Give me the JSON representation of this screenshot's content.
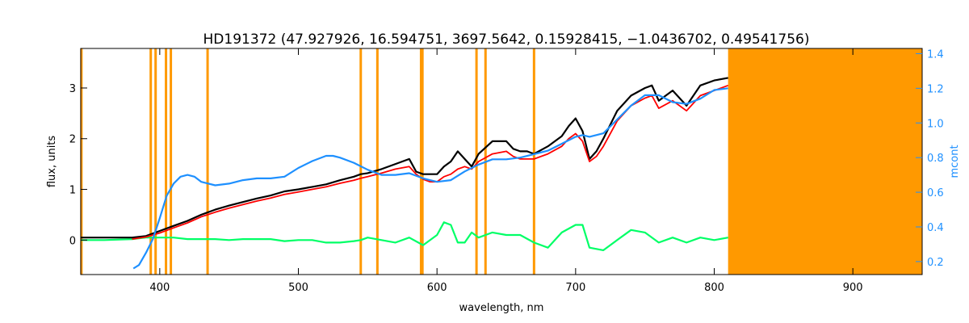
{
  "chart_data": {
    "type": "line",
    "title": "HD191372    (47.927926, 16.594751, 3697.5642, 0.15928415, −1.0436702, 0.49541756)",
    "xlabel": "wavelength, nm",
    "ylabel": "flux, units",
    "ylabel_right": "mcont",
    "xlim": [
      343,
      950
    ],
    "ylim": [
      -0.68,
      3.78
    ],
    "ylim_right": [
      0.125,
      1.43
    ],
    "x_ticks": [
      400,
      500,
      600,
      700,
      800,
      900
    ],
    "y_ticks": [
      0,
      1,
      2,
      3
    ],
    "y_ticks_right": [
      0.2,
      0.4,
      0.6,
      0.8,
      1.0,
      1.2,
      1.4
    ],
    "x_tick_labels": [
      "400",
      "500",
      "600",
      "700",
      "800",
      "900"
    ],
    "y_tick_labels": [
      "0",
      "1",
      "2",
      "3"
    ],
    "y_tick_labels_right": [
      "0.2",
      "0.4",
      "0.6",
      "0.8",
      "1.0",
      "1.2",
      "1.4"
    ],
    "masked_region": {
      "from": 810,
      "to": 950,
      "color": "#ff9900"
    },
    "mask_lines_nm": [
      343.5,
      393.5,
      397.0,
      404.5,
      408.0,
      434.5,
      545.0,
      557.0,
      588.5,
      589.5,
      628.5,
      635.0,
      670.0
    ],
    "colors": {
      "observed": "#000000",
      "model": "#ff0000",
      "residual": "#00ff66",
      "continuum": "#1e90ff",
      "mask": "#ff9900"
    },
    "series": [
      {
        "name": "observed",
        "x": [
          343,
          360,
          380,
          390,
          400,
          410,
          420,
          430,
          440,
          450,
          460,
          470,
          480,
          490,
          500,
          510,
          520,
          530,
          540,
          545,
          550,
          560,
          570,
          580,
          585,
          590,
          595,
          600,
          605,
          610,
          615,
          620,
          625,
          630,
          640,
          650,
          655,
          660,
          665,
          670,
          680,
          690,
          695,
          700,
          705,
          710,
          715,
          720,
          730,
          740,
          750,
          755,
          760,
          770,
          780,
          790,
          800,
          810
        ],
        "y": [
          0.05,
          0.05,
          0.05,
          0.08,
          0.18,
          0.28,
          0.38,
          0.5,
          0.6,
          0.68,
          0.75,
          0.82,
          0.88,
          0.96,
          1.0,
          1.05,
          1.1,
          1.18,
          1.25,
          1.3,
          1.32,
          1.4,
          1.5,
          1.6,
          1.35,
          1.3,
          1.3,
          1.3,
          1.45,
          1.55,
          1.75,
          1.6,
          1.45,
          1.7,
          1.95,
          1.95,
          1.8,
          1.75,
          1.75,
          1.7,
          1.85,
          2.05,
          2.25,
          2.4,
          2.15,
          1.6,
          1.75,
          2.0,
          2.55,
          2.85,
          3.0,
          3.05,
          2.75,
          2.95,
          2.65,
          3.05,
          3.15,
          3.2
        ]
      },
      {
        "name": "model",
        "x": [
          380,
          390,
          400,
          410,
          420,
          430,
          440,
          450,
          460,
          470,
          480,
          490,
          500,
          510,
          520,
          530,
          540,
          545,
          550,
          560,
          570,
          580,
          585,
          590,
          595,
          600,
          605,
          610,
          615,
          620,
          625,
          630,
          640,
          650,
          655,
          660,
          665,
          670,
          680,
          690,
          695,
          700,
          705,
          710,
          715,
          720,
          730,
          740,
          750,
          755,
          760,
          770,
          780,
          790,
          800,
          810
        ],
        "y": [
          0.02,
          0.06,
          0.14,
          0.24,
          0.34,
          0.46,
          0.55,
          0.63,
          0.7,
          0.77,
          0.83,
          0.9,
          0.95,
          1.0,
          1.05,
          1.12,
          1.18,
          1.22,
          1.25,
          1.32,
          1.4,
          1.45,
          1.3,
          1.2,
          1.15,
          1.15,
          1.25,
          1.3,
          1.4,
          1.45,
          1.4,
          1.55,
          1.7,
          1.75,
          1.65,
          1.6,
          1.6,
          1.6,
          1.7,
          1.85,
          2.0,
          2.1,
          1.95,
          1.55,
          1.65,
          1.85,
          2.35,
          2.65,
          2.8,
          2.85,
          2.6,
          2.75,
          2.55,
          2.85,
          2.95,
          3.05
        ]
      },
      {
        "name": "residual",
        "x": [
          343,
          360,
          380,
          390,
          400,
          410,
          420,
          430,
          440,
          450,
          460,
          470,
          480,
          490,
          500,
          510,
          520,
          530,
          540,
          545,
          550,
          560,
          570,
          580,
          590,
          600,
          605,
          610,
          615,
          620,
          625,
          630,
          640,
          650,
          660,
          670,
          680,
          690,
          700,
          705,
          710,
          720,
          730,
          740,
          750,
          760,
          770,
          780,
          790,
          800,
          810
        ],
        "y": [
          0.0,
          0.0,
          0.02,
          0.05,
          0.05,
          0.05,
          0.02,
          0.02,
          0.02,
          0.0,
          0.02,
          0.02,
          0.02,
          -0.02,
          0.0,
          0.0,
          -0.05,
          -0.05,
          -0.02,
          0.0,
          0.05,
          0.0,
          -0.05,
          0.05,
          -0.1,
          0.1,
          0.35,
          0.3,
          -0.05,
          -0.05,
          0.15,
          0.05,
          0.15,
          0.1,
          0.1,
          -0.05,
          -0.15,
          0.15,
          0.3,
          0.3,
          -0.15,
          -0.2,
          0.0,
          0.2,
          0.15,
          -0.05,
          0.05,
          -0.05,
          0.05,
          0.0,
          0.05
        ]
      },
      {
        "name": "continuum",
        "axis": "right",
        "x": [
          381,
          385,
          390,
          395,
          400,
          405,
          410,
          415,
          420,
          425,
          430,
          440,
          450,
          460,
          470,
          480,
          490,
          500,
          510,
          520,
          525,
          530,
          540,
          550,
          560,
          570,
          580,
          590,
          600,
          610,
          620,
          630,
          640,
          650,
          660,
          670,
          680,
          690,
          700,
          705,
          710,
          720,
          730,
          740,
          750,
          755,
          760,
          770,
          780,
          790,
          800,
          810
        ],
        "y": [
          0.16,
          0.18,
          0.25,
          0.33,
          0.45,
          0.58,
          0.65,
          0.69,
          0.7,
          0.69,
          0.66,
          0.64,
          0.65,
          0.67,
          0.68,
          0.68,
          0.69,
          0.74,
          0.78,
          0.81,
          0.81,
          0.8,
          0.77,
          0.73,
          0.7,
          0.7,
          0.71,
          0.68,
          0.66,
          0.67,
          0.72,
          0.76,
          0.79,
          0.79,
          0.8,
          0.82,
          0.84,
          0.88,
          0.92,
          0.93,
          0.92,
          0.94,
          1.02,
          1.1,
          1.16,
          1.16,
          1.16,
          1.12,
          1.11,
          1.14,
          1.19,
          1.2
        ]
      }
    ]
  }
}
